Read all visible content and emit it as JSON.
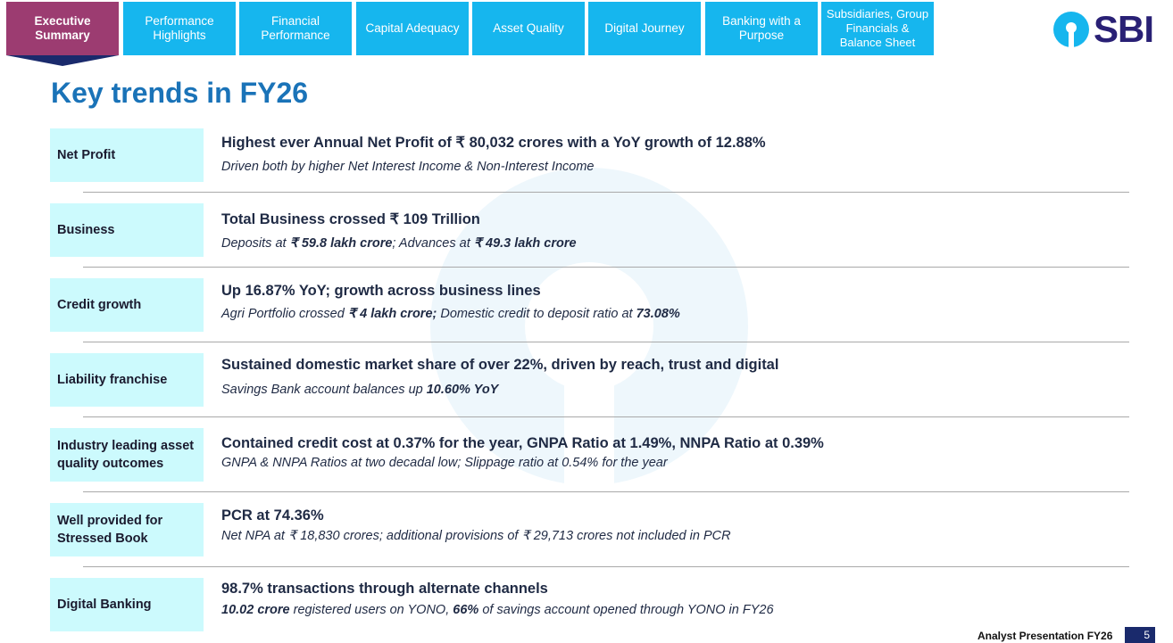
{
  "nav": {
    "tabs": [
      {
        "label": "Executive Summary",
        "active": true
      },
      {
        "label": "Performance Highlights",
        "active": false
      },
      {
        "label": "Financial Performance",
        "active": false
      },
      {
        "label": "Capital Adequacy",
        "active": false
      },
      {
        "label": "Asset Quality",
        "active": false
      },
      {
        "label": "Digital Journey",
        "active": false
      },
      {
        "label": "Banking with a Purpose",
        "active": false
      },
      {
        "label": "Subsidiaries, Group Financials & Balance Sheet",
        "active": false
      }
    ]
  },
  "brand": {
    "logo_text": "SBI",
    "logo_color": "#292075",
    "accent": "#16b6ee",
    "active_tab_color": "#9c3c71"
  },
  "title": "Key trends in FY26",
  "rows": [
    {
      "label": "Net Profit",
      "headline": "Highest ever Annual Net Profit of ₹ 80,032 crores with a YoY growth of 12.88%",
      "sub": [
        {
          "t": "Driven both by higher Net Interest Income & Non-Interest Income",
          "b": false
        }
      ]
    },
    {
      "label": "Business",
      "headline": "Total Business crossed ₹ 109 Trillion",
      "sub": [
        {
          "t": "Deposits at ",
          "b": false
        },
        {
          "t": "₹ 59.8 lakh crore",
          "b": true
        },
        {
          "t": "; Advances at ",
          "b": false
        },
        {
          "t": "₹ 49.3 lakh crore",
          "b": true
        }
      ]
    },
    {
      "label": "Credit growth",
      "headline": "Up 16.87% YoY; growth across business lines",
      "sub": [
        {
          "t": "Agri Portfolio crossed ",
          "b": false
        },
        {
          "t": "₹ 4 lakh crore;",
          "b": true
        },
        {
          "t": " Domestic credit to deposit ratio at ",
          "b": false
        },
        {
          "t": "73.08%",
          "b": true
        }
      ]
    },
    {
      "label": "Liability franchise",
      "headline": "Sustained domestic market share of over 22%, driven by reach, trust and digital",
      "sub": [
        {
          "t": "Savings Bank account balances up ",
          "b": false
        },
        {
          "t": "10.60% YoY",
          "b": true
        }
      ]
    },
    {
      "label": "Industry leading asset quality outcomes",
      "headline": "Contained credit cost at 0.37% for the year, GNPA Ratio at 1.49%, NNPA Ratio at 0.39%",
      "sub": [
        {
          "t": "GNPA & NNPA Ratios at two decadal low; Slippage ratio at 0.54% for the year",
          "b": false
        }
      ]
    },
    {
      "label": "Well provided for Stressed Book",
      "headline": "PCR at 74.36%",
      "sub": [
        {
          "t": "Net NPA at ₹ 18,830 crores; additional provisions of ₹ 29,713 crores not included in PCR",
          "b": false
        }
      ]
    },
    {
      "label": "Digital Banking",
      "headline": "98.7% transactions through alternate channels",
      "sub": [
        {
          "t": "10.02 crore",
          "b": true
        },
        {
          "t": " registered users on YONO, ",
          "b": false
        },
        {
          "t": "66%",
          "b": true
        },
        {
          "t": " of savings account opened through YONO in FY26",
          "b": false
        }
      ]
    }
  ],
  "footer": {
    "text": "Analyst Presentation FY26",
    "page": "5"
  }
}
